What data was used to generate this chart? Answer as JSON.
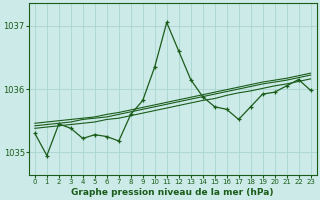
{
  "title": "Graphe pression niveau de la mer (hPa)",
  "bg_color": "#cceae7",
  "grid_color": "#aad4d0",
  "line_color": "#1a5c1a",
  "xlim": [
    -0.5,
    23.5
  ],
  "ylim": [
    1034.65,
    1037.35
  ],
  "yticks": [
    1035,
    1036,
    1037
  ],
  "xticks": [
    0,
    1,
    2,
    3,
    4,
    5,
    6,
    7,
    8,
    9,
    10,
    11,
    12,
    13,
    14,
    15,
    16,
    17,
    18,
    19,
    20,
    21,
    22,
    23
  ],
  "main_series": [
    1035.3,
    1034.95,
    1035.45,
    1035.38,
    1035.22,
    1035.28,
    1035.25,
    1035.18,
    1035.6,
    1035.82,
    1036.35,
    1037.05,
    1036.6,
    1036.15,
    1035.88,
    1035.72,
    1035.68,
    1035.52,
    1035.72,
    1035.92,
    1035.95,
    1036.05,
    1036.15,
    1035.98
  ],
  "trend_series": [
    [
      1035.38,
      1035.4,
      1035.42,
      1035.44,
      1035.46,
      1035.48,
      1035.52,
      1035.54,
      1035.58,
      1035.62,
      1035.66,
      1035.7,
      1035.74,
      1035.78,
      1035.82,
      1035.85,
      1035.9,
      1035.94,
      1035.97,
      1036.01,
      1036.05,
      1036.08,
      1036.12,
      1036.16
    ],
    [
      1035.42,
      1035.44,
      1035.46,
      1035.48,
      1035.52,
      1035.54,
      1035.56,
      1035.6,
      1035.64,
      1035.68,
      1035.72,
      1035.76,
      1035.8,
      1035.84,
      1035.88,
      1035.92,
      1035.96,
      1036.0,
      1036.04,
      1036.08,
      1036.11,
      1036.14,
      1036.18,
      1036.22
    ],
    [
      1035.46,
      1035.48,
      1035.5,
      1035.52,
      1035.54,
      1035.56,
      1035.6,
      1035.63,
      1035.67,
      1035.71,
      1035.75,
      1035.79,
      1035.83,
      1035.87,
      1035.91,
      1035.95,
      1035.99,
      1036.03,
      1036.07,
      1036.11,
      1036.14,
      1036.17,
      1036.21,
      1036.25
    ]
  ]
}
